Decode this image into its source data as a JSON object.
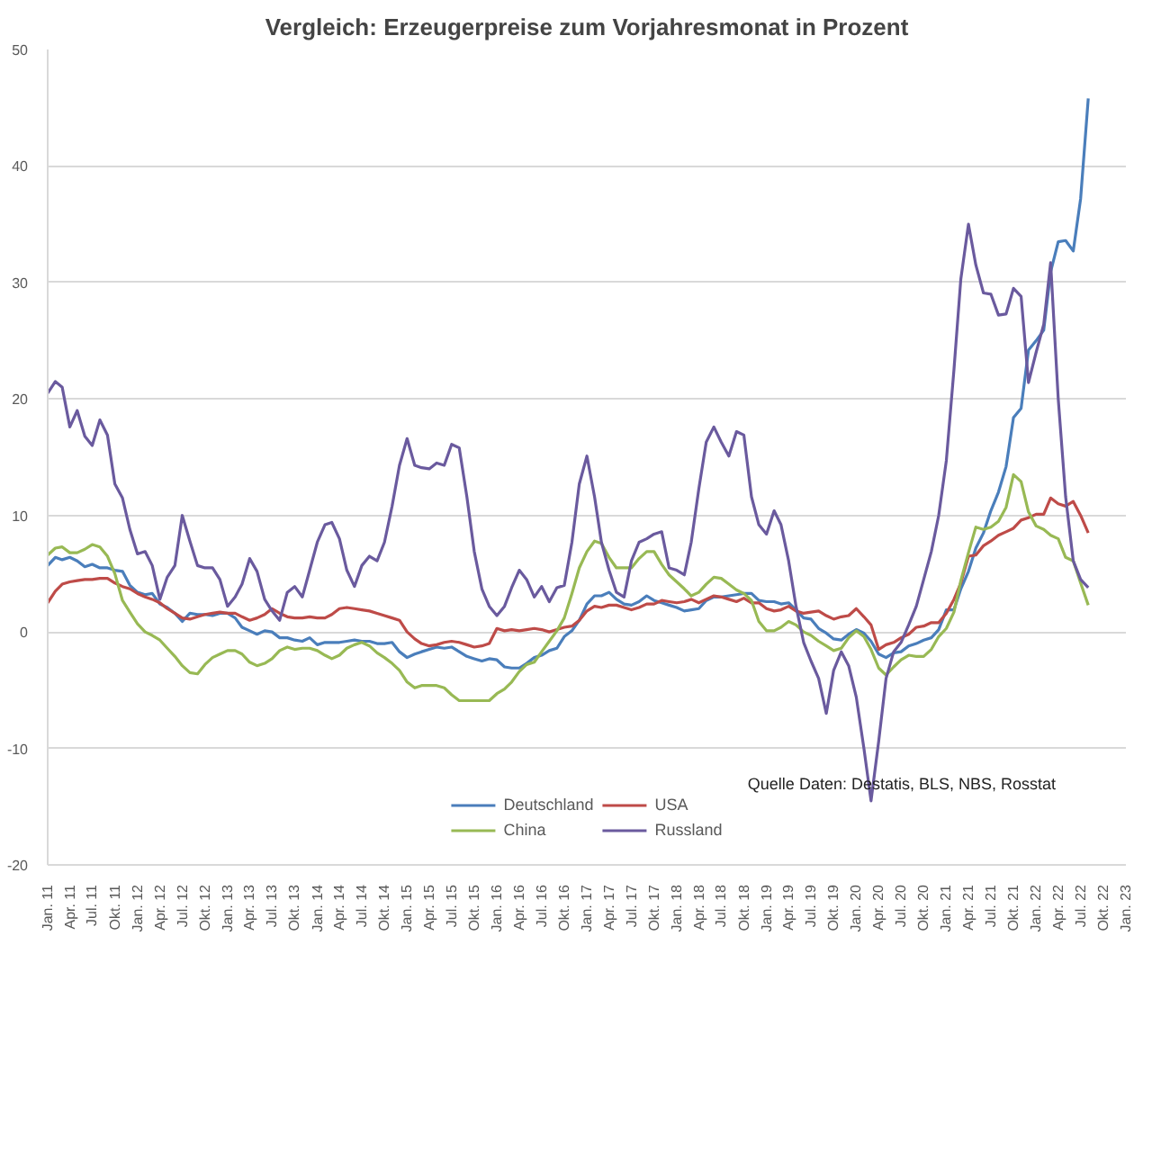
{
  "chart_data": {
    "type": "line",
    "title": "Vergleich: Erzeugerpreise zum Vorjahresmonat in Prozent",
    "x": [
      "2011-01",
      "2011-02",
      "2011-03",
      "2011-04",
      "2011-05",
      "2011-06",
      "2011-07",
      "2011-08",
      "2011-09",
      "2011-10",
      "2011-11",
      "2011-12",
      "2012-01",
      "2012-02",
      "2012-03",
      "2012-04",
      "2012-05",
      "2012-06",
      "2012-07",
      "2012-08",
      "2012-09",
      "2012-10",
      "2012-11",
      "2012-12",
      "2013-01",
      "2013-02",
      "2013-03",
      "2013-04",
      "2013-05",
      "2013-06",
      "2013-07",
      "2013-08",
      "2013-09",
      "2013-10",
      "2013-11",
      "2013-12",
      "2014-01",
      "2014-02",
      "2014-03",
      "2014-04",
      "2014-05",
      "2014-06",
      "2014-07",
      "2014-08",
      "2014-09",
      "2014-10",
      "2014-11",
      "2014-12",
      "2015-01",
      "2015-02",
      "2015-03",
      "2015-04",
      "2015-05",
      "2015-06",
      "2015-07",
      "2015-08",
      "2015-09",
      "2015-10",
      "2015-11",
      "2015-12",
      "2016-01",
      "2016-02",
      "2016-03",
      "2016-04",
      "2016-05",
      "2016-06",
      "2016-07",
      "2016-08",
      "2016-09",
      "2016-10",
      "2016-11",
      "2016-12",
      "2017-01",
      "2017-02",
      "2017-03",
      "2017-04",
      "2017-05",
      "2017-06",
      "2017-07",
      "2017-08",
      "2017-09",
      "2017-10",
      "2017-11",
      "2017-12",
      "2018-01",
      "2018-02",
      "2018-03",
      "2018-04",
      "2018-05",
      "2018-06",
      "2018-07",
      "2018-08",
      "2018-09",
      "2018-10",
      "2018-11",
      "2018-12",
      "2019-01",
      "2019-02",
      "2019-03",
      "2019-04",
      "2019-05",
      "2019-06",
      "2019-07",
      "2019-08",
      "2019-09",
      "2019-10",
      "2019-11",
      "2019-12",
      "2020-01",
      "2020-02",
      "2020-03",
      "2020-04",
      "2020-05",
      "2020-06",
      "2020-07",
      "2020-08",
      "2020-09",
      "2020-10",
      "2020-11",
      "2020-12",
      "2021-01",
      "2021-02",
      "2021-03",
      "2021-04",
      "2021-05",
      "2021-06",
      "2021-07",
      "2021-08",
      "2021-09",
      "2021-10",
      "2021-11",
      "2021-12",
      "2022-01",
      "2022-02",
      "2022-03",
      "2022-04",
      "2022-05",
      "2022-06",
      "2022-07",
      "2022-08"
    ],
    "series": [
      {
        "name": "Deutschland",
        "color": "#4a7ebb",
        "values": [
          5.7,
          6.4,
          6.2,
          6.4,
          6.1,
          5.6,
          5.8,
          5.5,
          5.5,
          5.3,
          5.2,
          4.0,
          3.4,
          3.2,
          3.3,
          2.4,
          2.1,
          1.6,
          0.9,
          1.6,
          1.5,
          1.5,
          1.4,
          1.6,
          1.6,
          1.2,
          0.4,
          0.1,
          -0.2,
          0.1,
          0.0,
          -0.5,
          -0.5,
          -0.7,
          -0.8,
          -0.5,
          -1.1,
          -0.9,
          -0.9,
          -0.9,
          -0.8,
          -0.7,
          -0.8,
          -0.8,
          -1.0,
          -1.0,
          -0.9,
          -1.7,
          -2.2,
          -1.9,
          -1.7,
          -1.5,
          -1.3,
          -1.4,
          -1.3,
          -1.7,
          -2.1,
          -2.3,
          -2.5,
          -2.3,
          -2.4,
          -3.0,
          -3.1,
          -3.1,
          -2.7,
          -2.2,
          -2.0,
          -1.6,
          -1.4,
          -0.4,
          0.1,
          1.0,
          2.4,
          3.1,
          3.1,
          3.4,
          2.8,
          2.4,
          2.3,
          2.6,
          3.1,
          2.7,
          2.5,
          2.3,
          2.1,
          1.8,
          1.9,
          2.0,
          2.7,
          3.0,
          3.0,
          3.1,
          3.2,
          3.3,
          3.3,
          2.7,
          2.6,
          2.6,
          2.4,
          2.5,
          1.9,
          1.2,
          1.1,
          0.3,
          -0.1,
          -0.6,
          -0.7,
          -0.2,
          0.2,
          -0.1,
          -0.8,
          -1.9,
          -2.2,
          -1.8,
          -1.7,
          -1.2,
          -1.0,
          -0.7,
          -0.5,
          0.2,
          1.9,
          1.9,
          3.7,
          5.2,
          7.2,
          8.5,
          10.4,
          12.0,
          14.2,
          18.4,
          19.2,
          24.2,
          25.0,
          25.9,
          30.9,
          33.5,
          33.6,
          32.7,
          37.2,
          45.8
        ]
      },
      {
        "name": "USA",
        "color": "#be4b48",
        "values": [
          2.5,
          3.5,
          4.1,
          4.3,
          4.4,
          4.5,
          4.5,
          4.6,
          4.6,
          4.2,
          3.9,
          3.7,
          3.3,
          3.0,
          2.8,
          2.5,
          2.0,
          1.6,
          1.2,
          1.1,
          1.3,
          1.5,
          1.6,
          1.7,
          1.6,
          1.6,
          1.3,
          1.0,
          1.2,
          1.5,
          2.0,
          1.6,
          1.3,
          1.2,
          1.2,
          1.3,
          1.2,
          1.2,
          1.5,
          2.0,
          2.1,
          2.0,
          1.9,
          1.8,
          1.6,
          1.4,
          1.2,
          1.0,
          0.0,
          -0.6,
          -1.0,
          -1.2,
          -1.1,
          -0.9,
          -0.8,
          -0.9,
          -1.1,
          -1.3,
          -1.2,
          -1.0,
          0.3,
          0.1,
          0.2,
          0.1,
          0.2,
          0.3,
          0.2,
          0.0,
          0.2,
          0.4,
          0.5,
          1.0,
          1.8,
          2.2,
          2.1,
          2.3,
          2.3,
          2.1,
          1.9,
          2.1,
          2.4,
          2.4,
          2.7,
          2.6,
          2.5,
          2.6,
          2.8,
          2.5,
          2.8,
          3.1,
          3.0,
          2.8,
          2.6,
          2.9,
          2.5,
          2.5,
          2.0,
          1.8,
          1.9,
          2.2,
          1.8,
          1.6,
          1.7,
          1.8,
          1.4,
          1.1,
          1.3,
          1.4,
          2.0,
          1.3,
          0.6,
          -1.5,
          -1.1,
          -0.9,
          -0.5,
          -0.2,
          0.4,
          0.5,
          0.8,
          0.8,
          1.6,
          2.8,
          4.2,
          6.5,
          6.6,
          7.4,
          7.8,
          8.3,
          8.6,
          8.9,
          9.6,
          9.8,
          10.1,
          10.1,
          11.5,
          11.0,
          10.8,
          11.2,
          10.0,
          8.5
        ]
      },
      {
        "name": "China",
        "color": "#98b954",
        "values": [
          6.6,
          7.2,
          7.3,
          6.8,
          6.8,
          7.1,
          7.5,
          7.3,
          6.5,
          5.0,
          2.7,
          1.7,
          0.7,
          0.0,
          -0.3,
          -0.7,
          -1.4,
          -2.1,
          -2.9,
          -3.5,
          -3.6,
          -2.8,
          -2.2,
          -1.9,
          -1.6,
          -1.6,
          -1.9,
          -2.6,
          -2.9,
          -2.7,
          -2.3,
          -1.6,
          -1.3,
          -1.5,
          -1.4,
          -1.4,
          -1.6,
          -2.0,
          -2.3,
          -2.0,
          -1.4,
          -1.1,
          -0.9,
          -1.2,
          -1.8,
          -2.2,
          -2.7,
          -3.3,
          -4.3,
          -4.8,
          -4.6,
          -4.6,
          -4.6,
          -4.8,
          -5.4,
          -5.9,
          -5.9,
          -5.9,
          -5.9,
          -5.9,
          -5.3,
          -4.9,
          -4.3,
          -3.4,
          -2.8,
          -2.6,
          -1.7,
          -0.8,
          0.1,
          1.2,
          3.3,
          5.5,
          6.9,
          7.8,
          7.6,
          6.4,
          5.5,
          5.5,
          5.5,
          6.3,
          6.9,
          6.9,
          5.8,
          4.9,
          4.3,
          3.7,
          3.1,
          3.4,
          4.1,
          4.7,
          4.6,
          4.1,
          3.6,
          3.3,
          2.7,
          0.9,
          0.1,
          0.1,
          0.4,
          0.9,
          0.6,
          0.0,
          -0.3,
          -0.8,
          -1.2,
          -1.6,
          -1.4,
          -0.5,
          0.1,
          -0.4,
          -1.5,
          -3.1,
          -3.7,
          -3.0,
          -2.4,
          -2.0,
          -2.1,
          -2.1,
          -1.5,
          -0.4,
          0.3,
          1.7,
          4.4,
          6.8,
          9.0,
          8.8,
          9.0,
          9.5,
          10.7,
          13.5,
          12.9,
          10.3,
          9.1,
          8.8,
          8.3,
          8.0,
          6.4,
          6.1,
          4.2,
          2.3
        ]
      },
      {
        "name": "Russland",
        "color": "#6a5a9e",
        "values": [
          20.5,
          21.5,
          21.0,
          17.6,
          19.0,
          16.8,
          16.0,
          18.2,
          16.9,
          12.7,
          11.5,
          8.8,
          6.7,
          6.9,
          5.7,
          2.8,
          4.7,
          5.7,
          10.0,
          7.8,
          5.7,
          5.5,
          5.5,
          4.5,
          2.2,
          3.0,
          4.1,
          6.3,
          5.2,
          2.8,
          1.8,
          1.0,
          3.4,
          3.9,
          3.0,
          5.3,
          7.7,
          9.2,
          9.4,
          8.0,
          5.3,
          3.9,
          5.7,
          6.5,
          6.1,
          7.7,
          10.8,
          14.3,
          16.6,
          14.3,
          14.1,
          14.0,
          14.5,
          14.3,
          16.1,
          15.8,
          11.6,
          6.9,
          3.7,
          2.2,
          1.4,
          2.2,
          3.8,
          5.3,
          4.5,
          3.0,
          3.9,
          2.6,
          3.8,
          4.0,
          7.7,
          12.7,
          15.1,
          11.6,
          7.7,
          5.3,
          3.4,
          3.0,
          6.1,
          7.7,
          8.0,
          8.4,
          8.6,
          5.5,
          5.3,
          4.9,
          7.7,
          12.3,
          16.3,
          17.6,
          16.3,
          15.1,
          17.2,
          16.9,
          11.6,
          9.2,
          8.4,
          10.4,
          9.2,
          6.1,
          2.2,
          -0.9,
          -2.5,
          -4.0,
          -7.0,
          -3.3,
          -1.7,
          -2.9,
          -5.6,
          -10.0,
          -14.5,
          -9.4,
          -4.0,
          -1.7,
          -0.9,
          0.6,
          2.2,
          4.5,
          6.9,
          10.0,
          14.7,
          22.5,
          30.3,
          35.0,
          31.5,
          29.1,
          29.0,
          27.2,
          27.3,
          29.5,
          28.8,
          21.4,
          24.0,
          26.4,
          31.7,
          20.0,
          11.6,
          6.1,
          4.5,
          3.8
        ]
      }
    ],
    "xlim": [
      "2011-01",
      "2023-01"
    ],
    "xticks": [
      {
        "value": "2011-01",
        "label": "Jan. 11"
      },
      {
        "value": "2011-04",
        "label": "Apr. 11"
      },
      {
        "value": "2011-07",
        "label": "Jul. 11"
      },
      {
        "value": "2011-10",
        "label": "Okt. 11"
      },
      {
        "value": "2012-01",
        "label": "Jan. 12"
      },
      {
        "value": "2012-04",
        "label": "Apr. 12"
      },
      {
        "value": "2012-07",
        "label": "Jul. 12"
      },
      {
        "value": "2012-10",
        "label": "Okt. 12"
      },
      {
        "value": "2013-01",
        "label": "Jan. 13"
      },
      {
        "value": "2013-04",
        "label": "Apr. 13"
      },
      {
        "value": "2013-07",
        "label": "Jul. 13"
      },
      {
        "value": "2013-10",
        "label": "Okt. 13"
      },
      {
        "value": "2014-01",
        "label": "Jan. 14"
      },
      {
        "value": "2014-04",
        "label": "Apr. 14"
      },
      {
        "value": "2014-07",
        "label": "Jul. 14"
      },
      {
        "value": "2014-10",
        "label": "Okt. 14"
      },
      {
        "value": "2015-01",
        "label": "Jan. 15"
      },
      {
        "value": "2015-04",
        "label": "Apr. 15"
      },
      {
        "value": "2015-07",
        "label": "Jul. 15"
      },
      {
        "value": "2015-10",
        "label": "Okt. 15"
      },
      {
        "value": "2016-01",
        "label": "Jan. 16"
      },
      {
        "value": "2016-04",
        "label": "Apr. 16"
      },
      {
        "value": "2016-07",
        "label": "Jul. 16"
      },
      {
        "value": "2016-10",
        "label": "Okt. 16"
      },
      {
        "value": "2017-01",
        "label": "Jan. 17"
      },
      {
        "value": "2017-04",
        "label": "Apr. 17"
      },
      {
        "value": "2017-07",
        "label": "Jul. 17"
      },
      {
        "value": "2017-10",
        "label": "Okt. 17"
      },
      {
        "value": "2018-01",
        "label": "Jan. 18"
      },
      {
        "value": "2018-04",
        "label": "Apr. 18"
      },
      {
        "value": "2018-07",
        "label": "Jul. 18"
      },
      {
        "value": "2018-10",
        "label": "Okt. 18"
      },
      {
        "value": "2019-01",
        "label": "Jan. 19"
      },
      {
        "value": "2019-04",
        "label": "Apr. 19"
      },
      {
        "value": "2019-07",
        "label": "Jul. 19"
      },
      {
        "value": "2019-10",
        "label": "Okt. 19"
      },
      {
        "value": "2020-01",
        "label": "Jan. 20"
      },
      {
        "value": "2020-04",
        "label": "Apr. 20"
      },
      {
        "value": "2020-07",
        "label": "Jul. 20"
      },
      {
        "value": "2020-10",
        "label": "Okt. 20"
      },
      {
        "value": "2021-01",
        "label": "Jan. 21"
      },
      {
        "value": "2021-04",
        "label": "Apr. 21"
      },
      {
        "value": "2021-07",
        "label": "Jul. 21"
      },
      {
        "value": "2021-10",
        "label": "Okt. 21"
      },
      {
        "value": "2022-01",
        "label": "Jan. 22"
      },
      {
        "value": "2022-04",
        "label": "Apr. 22"
      },
      {
        "value": "2022-07",
        "label": "Jul. 22"
      },
      {
        "value": "2022-10",
        "label": "Okt. 22"
      },
      {
        "value": "2023-01",
        "label": "Jan. 23"
      }
    ],
    "ylim": [
      -20,
      50
    ],
    "yticks": [
      -20,
      -10,
      0,
      10,
      20,
      30,
      40,
      50
    ],
    "grid": "y",
    "legend": "bottom",
    "marker": "none",
    "line_style": "solid",
    "annotations": [
      "Quelle Daten: Destatis, BLS, NBS, Rosstat"
    ]
  }
}
